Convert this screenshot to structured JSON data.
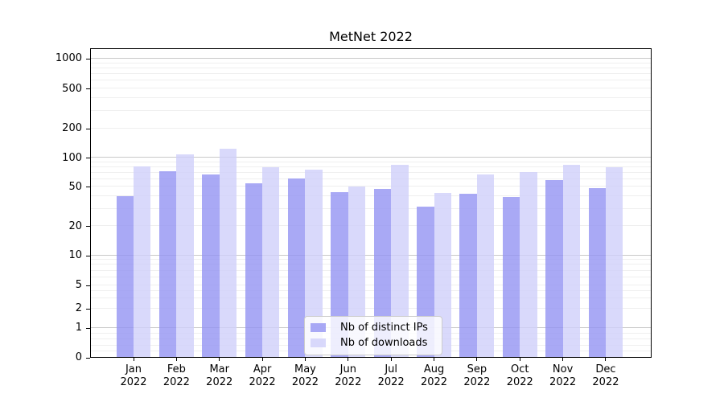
{
  "chart_data": {
    "type": "bar",
    "title": "MetNet 2022",
    "year": "2022",
    "categories": [
      "Jan 2022",
      "Feb 2022",
      "Mar 2022",
      "Apr 2022",
      "May 2022",
      "Jun 2022",
      "Jul 2022",
      "Aug 2022",
      "Sep 2022",
      "Oct 2022",
      "Nov 2022",
      "Dec 2022"
    ],
    "month_labels": [
      "Jan",
      "Feb",
      "Mar",
      "Apr",
      "May",
      "Jun",
      "Jul",
      "Aug",
      "Sep",
      "Oct",
      "Nov",
      "Dec"
    ],
    "series": [
      {
        "name": "Nb of distinct IPs",
        "color": "#9494f3",
        "values": [
          40,
          72,
          66,
          54,
          60,
          44,
          47,
          31,
          42,
          39,
          58,
          48
        ]
      },
      {
        "name": "Nb of downloads",
        "color": "#d0d0fa",
        "values": [
          80,
          108,
          123,
          79,
          75,
          50,
          83,
          43,
          67,
          70,
          84,
          79
        ]
      }
    ],
    "yscale": "symlog",
    "y_tick_values": [
      0,
      1,
      2,
      5,
      10,
      20,
      50,
      100,
      200,
      500,
      1000
    ],
    "minor_grid_values": [
      0.2,
      0.4,
      0.6,
      0.8,
      2,
      3,
      4,
      5,
      6,
      7,
      8,
      9,
      20,
      30,
      40,
      50,
      60,
      70,
      80,
      90,
      200,
      300,
      400,
      500,
      600,
      700,
      800,
      900
    ],
    "major_grid_values": [
      1,
      10,
      100,
      1000
    ],
    "grid": true,
    "legend_position": "lower center",
    "background_color": "#ffffff",
    "axis_color": "#000000"
  }
}
